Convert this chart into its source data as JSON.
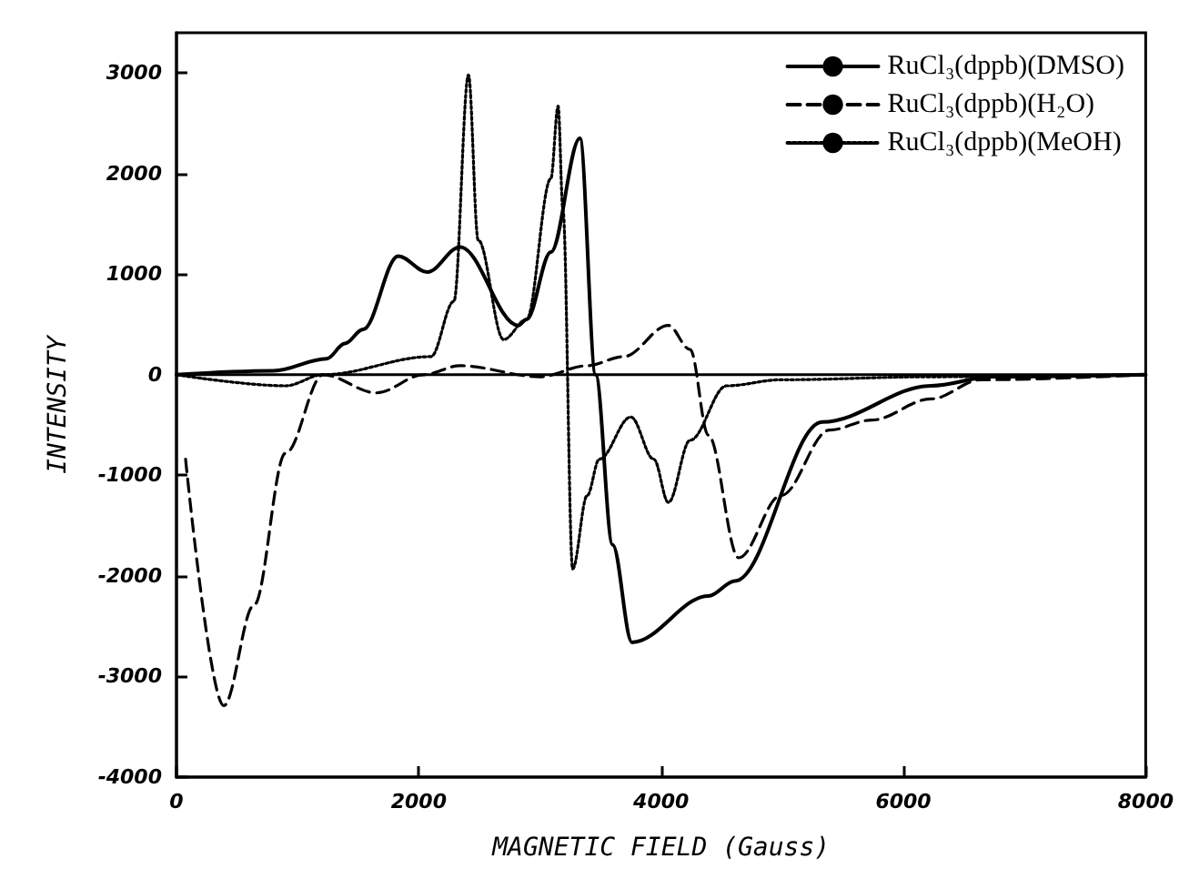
{
  "chart_data": {
    "type": "line",
    "xlabel": "MAGNETIC FIELD (Gauss)",
    "ylabel": "INTENSITY",
    "xlim": [
      0,
      8000
    ],
    "xticks": [
      0,
      2000,
      4000,
      6000,
      8000
    ],
    "ylim": [
      -4000,
      3400
    ],
    "yticks": [
      -4000,
      -3000,
      -2000,
      -1000,
      0,
      1000,
      2000,
      3000
    ],
    "grid": false,
    "legend": "top right",
    "marker": "none",
    "ref_lines": [
      {
        "axis": "y",
        "value": 0,
        "color": "#000000",
        "line_style": "solid"
      }
    ],
    "series": [
      {
        "name": "RuCl₃(dppb)(DMSO)",
        "color": "#000000",
        "line_style": "solid",
        "x": [
          0,
          800,
          1240,
          1390,
          1540,
          1830,
          2070,
          2340,
          2820,
          2890,
          3090,
          3330,
          3460,
          3600,
          3760,
          4390,
          4610,
          5330,
          6230,
          6740,
          8000
        ],
        "values": [
          0,
          40,
          160,
          310,
          450,
          1180,
          1020,
          1270,
          490,
          550,
          1220,
          2350,
          0,
          -1690,
          -2660,
          -2200,
          -2050,
          -470,
          -110,
          -20,
          0
        ]
      },
      {
        "name": "RuCl₃(dppb)(H₂O)",
        "color": "#000000",
        "line_style": "dashed",
        "x": [
          75,
          390,
          640,
          900,
          1210,
          1650,
          2040,
          2340,
          3000,
          3390,
          3690,
          4060,
          4240,
          4390,
          4640,
          4990,
          5390,
          5740,
          6230,
          6640,
          8000
        ],
        "values": [
          -840,
          -3290,
          -2290,
          -780,
          0,
          -180,
          0,
          90,
          -20,
          90,
          180,
          490,
          250,
          -600,
          -1820,
          -1200,
          -550,
          -450,
          -240,
          -50,
          0
        ]
      },
      {
        "name": "RuCl₃(dppb)(MeOH)",
        "color": "#000000",
        "line_style": "dotted",
        "x": [
          0,
          900,
          1210,
          2100,
          2290,
          2410,
          2490,
          2700,
          2890,
          3090,
          3150,
          3190,
          3270,
          3390,
          3490,
          3750,
          3940,
          4060,
          4240,
          4540,
          4990,
          6230,
          8000
        ],
        "values": [
          0,
          -110,
          0,
          180,
          730,
          2980,
          1340,
          350,
          550,
          1950,
          2670,
          1640,
          -1930,
          -1200,
          -840,
          -420,
          -840,
          -1270,
          -650,
          -110,
          -50,
          -20,
          0
        ]
      }
    ]
  }
}
